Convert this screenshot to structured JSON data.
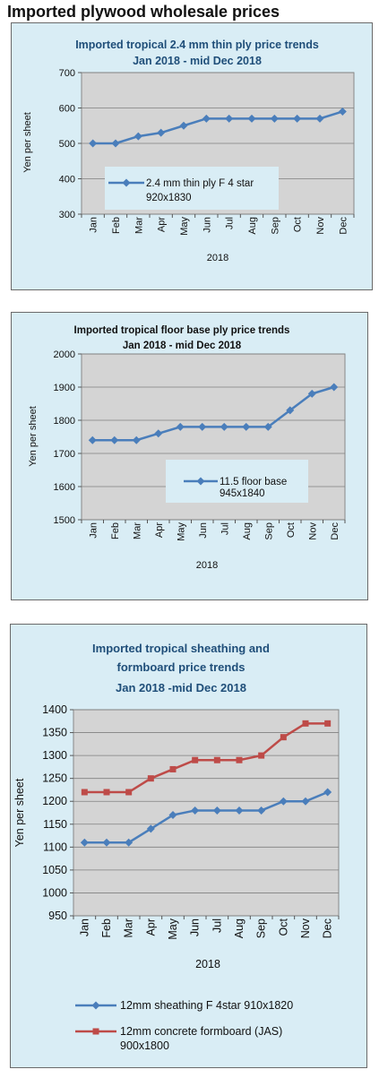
{
  "page": {
    "heading": "Imported plywood wholesale prices"
  },
  "colors": {
    "panel_bg": "#d9edf5",
    "plot_bg": "#d4d4d4",
    "blue_series": "#4a7ebb",
    "red_series": "#be4b48",
    "title_blue": "#1f4e79"
  },
  "chart_data": [
    {
      "type": "line",
      "title_lines": [
        "Imported tropical 2.4 mm thin ply price trends",
        "Jan 2018 -  mid Dec 2018"
      ],
      "xlabel": "2018",
      "ylabel": "Yen per sheet",
      "categories": [
        "Jan",
        "Feb",
        "Mar",
        "Apr",
        "May",
        "Jun",
        "Jul",
        "Aug",
        "Sep",
        "Oct",
        "Nov",
        "Dec"
      ],
      "ylim": [
        300,
        700
      ],
      "yticks": [
        "300",
        "400",
        "500",
        "600",
        "700"
      ],
      "grid": "horizontal",
      "legend": "inside-bottom-center",
      "series": [
        {
          "name_lines": [
            "2.4 mm thin ply F 4 star",
            "920x1830"
          ],
          "color": "#4a7ebb",
          "marker": "diamond",
          "values": [
            500,
            500,
            520,
            530,
            550,
            570,
            570,
            570,
            570,
            570,
            570,
            590
          ]
        }
      ]
    },
    {
      "type": "line",
      "title_lines": [
        "Imported tropical floor base ply price trends",
        "Jan 2018 - mid Dec 2018"
      ],
      "xlabel": "2018",
      "ylabel": "Yen per sheet",
      "categories": [
        "Jan",
        "Feb",
        "Mar",
        "Apr",
        "May",
        "Jun",
        "Jul",
        "Aug",
        "Sep",
        "Oct",
        "Nov",
        "Dec"
      ],
      "ylim": [
        1500,
        2000
      ],
      "yticks": [
        "1500",
        "1600",
        "1700",
        "1800",
        "1900",
        "2000"
      ],
      "grid": "horizontal",
      "legend": "inside-bottom-right",
      "series": [
        {
          "name_lines": [
            "11.5 floor base",
            "945x1840"
          ],
          "color": "#4a7ebb",
          "marker": "diamond",
          "values": [
            1740,
            1740,
            1740,
            1760,
            1780,
            1780,
            1780,
            1780,
            1780,
            1830,
            1880,
            1900
          ]
        }
      ]
    },
    {
      "type": "line",
      "title_lines": [
        "Imported tropical sheathing and",
        "formboard price trends",
        "Jan 2018 -mid Dec 2018"
      ],
      "xlabel": "2018",
      "ylabel": "Yen per sheet",
      "categories": [
        "Jan",
        "Feb",
        "Mar",
        "Apr",
        "May",
        "Jun",
        "Jul",
        "Aug",
        "Sep",
        "Oct",
        "Nov",
        "Dec"
      ],
      "ylim": [
        950,
        1400
      ],
      "yticks": [
        "950",
        "1000",
        "1050",
        "1100",
        "1150",
        "1200",
        "1250",
        "1300",
        "1350",
        "1400"
      ],
      "grid": "horizontal",
      "legend": "bottom",
      "series": [
        {
          "name_lines": [
            "12mm sheathing F 4star 910x1820"
          ],
          "color": "#4a7ebb",
          "marker": "diamond",
          "values": [
            1110,
            1110,
            1110,
            1140,
            1170,
            1180,
            1180,
            1180,
            1180,
            1200,
            1200,
            1220
          ]
        },
        {
          "name_lines": [
            "12mm concrete formboard (JAS)",
            "900x1800"
          ],
          "color": "#be4b48",
          "marker": "square",
          "values": [
            1220,
            1220,
            1220,
            1250,
            1270,
            1290,
            1290,
            1290,
            1300,
            1340,
            1370,
            1370
          ]
        }
      ]
    }
  ]
}
